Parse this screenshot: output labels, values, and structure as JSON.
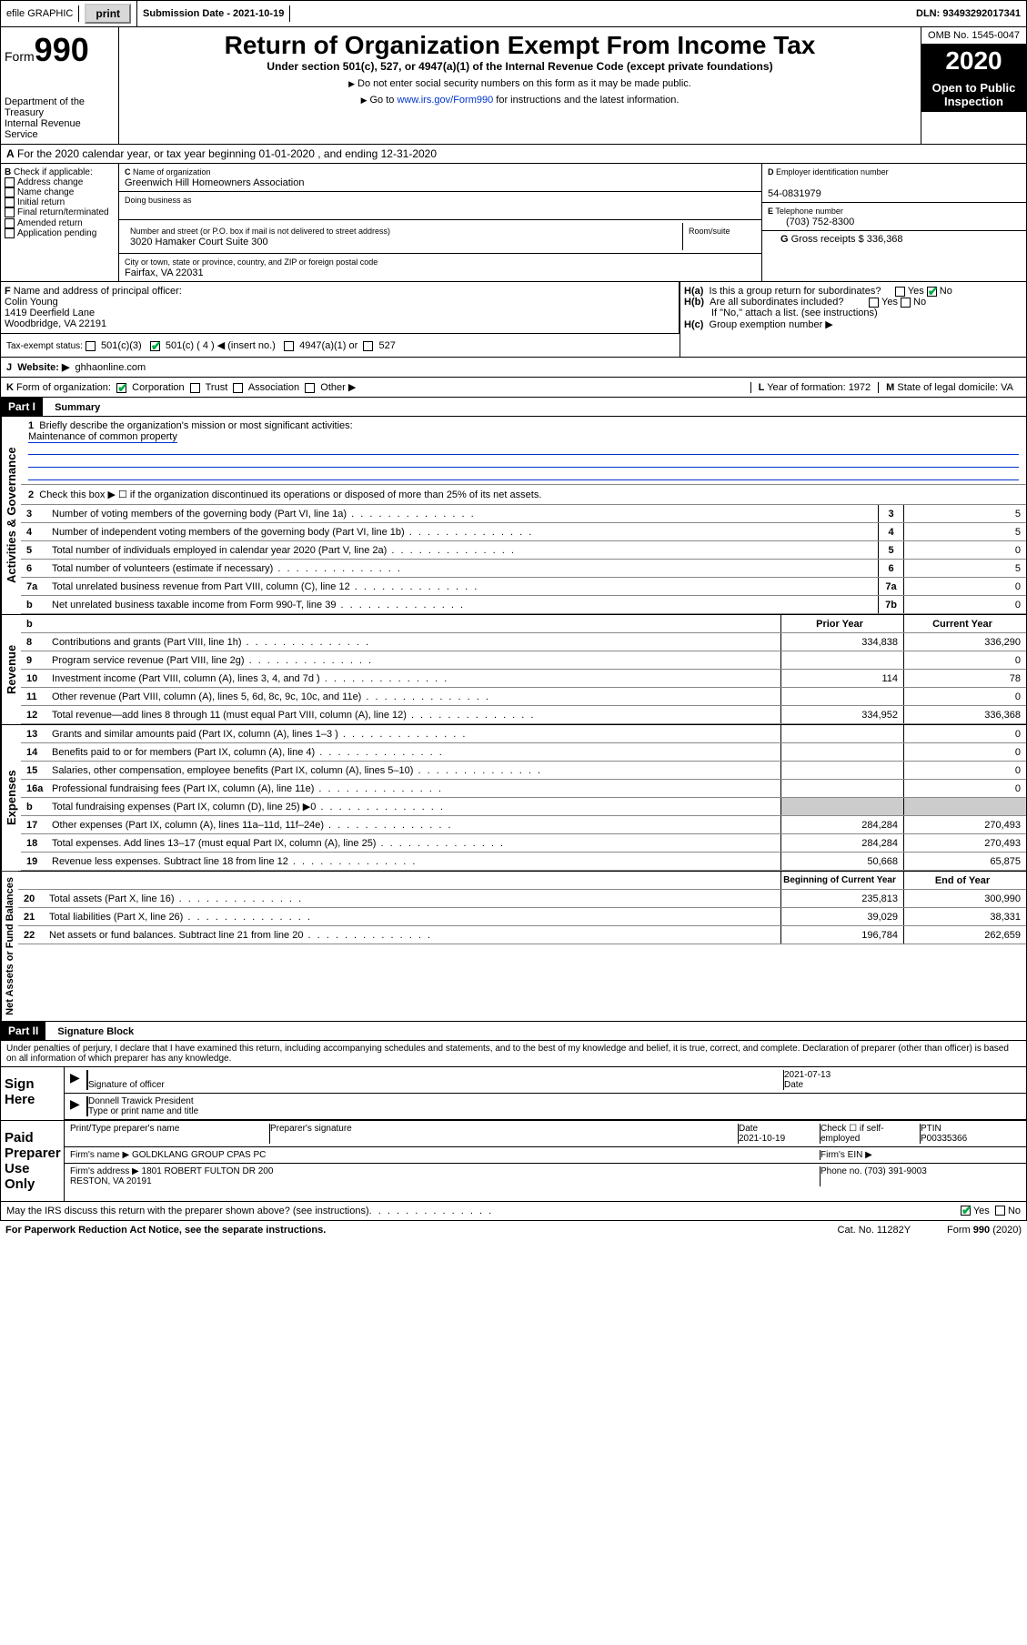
{
  "topbar": {
    "efile_label": "efile GRAPHIC",
    "print_btn": "print",
    "submission_label": "Submission Date - 2021-10-19",
    "dln_label": "DLN: 93493292017341"
  },
  "header": {
    "form_prefix": "Form",
    "form_num": "990",
    "dept": "Department of the Treasury\nInternal Revenue Service",
    "title": "Return of Organization Exempt From Income Tax",
    "sub1": "Under section 501(c), 527, or 4947(a)(1) of the Internal Revenue Code (except private foundations)",
    "sub2": "Do not enter social security numbers on this form as it may be made public.",
    "sub3_pre": "Go to ",
    "sub3_link": "www.irs.gov/Form990",
    "sub3_post": " for instructions and the latest information.",
    "omb": "OMB No. 1545-0047",
    "year": "2020",
    "inspect": "Open to Public Inspection"
  },
  "periodA": "For the 2020 calendar year, or tax year beginning 01-01-2020    , and ending 12-31-2020",
  "checkB": {
    "label": "Check if applicable:",
    "items": [
      "Address change",
      "Name change",
      "Initial return",
      "Final return/terminated",
      "Amended return",
      "Application pending"
    ]
  },
  "C": {
    "name_lbl": "Name of organization",
    "name": "Greenwich Hill Homeowners Association",
    "dba_lbl": "Doing business as",
    "addr_lbl": "Number and street (or P.O. box if mail is not delivered to street address)",
    "room_lbl": "Room/suite",
    "addr": "3020 Hamaker Court Suite 300",
    "city_lbl": "City or town, state or province, country, and ZIP or foreign postal code",
    "city": "Fairfax, VA  22031"
  },
  "D": {
    "lbl": "Employer identification number",
    "val": "54-0831979"
  },
  "E": {
    "lbl": "Telephone number",
    "val": "(703) 752-8300"
  },
  "G": {
    "lbl": "Gross receipts $",
    "val": "336,368"
  },
  "F": {
    "lbl": "Name and address of principal officer:",
    "name": "Colin Young",
    "addr1": "1419 Deerfield Lane",
    "addr2": "Woodbridge, VA  22191"
  },
  "H": {
    "a": "Is this a group return for subordinates?",
    "b": "Are all subordinates included?",
    "bnote": "If \"No,\" attach a list. (see instructions)",
    "c": "Group exemption number ▶",
    "yes": "Yes",
    "no": "No"
  },
  "taxexempt": {
    "lbl": "Tax-exempt status:",
    "opts": [
      "501(c)(3)",
      "501(c) ( 4 ) ◀ (insert no.)",
      "4947(a)(1) or",
      "527"
    ]
  },
  "J": {
    "lbl": "Website: ▶",
    "val": "ghhaonline.com"
  },
  "K": {
    "lbl": "Form of organization:",
    "opts": [
      "Corporation",
      "Trust",
      "Association",
      "Other ▶"
    ]
  },
  "L": {
    "lbl": "Year of formation:",
    "val": "1972"
  },
  "M": {
    "lbl": "State of legal domicile:",
    "val": "VA"
  },
  "part1": {
    "hdr": "Part I",
    "title": "Summary",
    "vtab1": "Activities & Governance",
    "vtab2": "Revenue",
    "vtab3": "Expenses",
    "vtab4": "Net Assets or Fund Balances",
    "q1": "Briefly describe the organization's mission or most significant activities:",
    "q1a": "Maintenance of common property",
    "q2": "Check this box ▶ ☐  if the organization discontinued its operations or disposed of more than 25% of its net assets.",
    "lines_gov": [
      {
        "n": "3",
        "t": "Number of voting members of the governing body (Part VI, line 1a)",
        "cn": "3",
        "v": "5"
      },
      {
        "n": "4",
        "t": "Number of independent voting members of the governing body (Part VI, line 1b)",
        "cn": "4",
        "v": "5"
      },
      {
        "n": "5",
        "t": "Total number of individuals employed in calendar year 2020 (Part V, line 2a)",
        "cn": "5",
        "v": "0"
      },
      {
        "n": "6",
        "t": "Total number of volunteers (estimate if necessary)",
        "cn": "6",
        "v": "5"
      },
      {
        "n": "7a",
        "t": "Total unrelated business revenue from Part VIII, column (C), line 12",
        "cn": "7a",
        "v": "0"
      },
      {
        "n": "b",
        "t": "Net unrelated business taxable income from Form 990-T, line 39",
        "cn": "7b",
        "v": "0"
      }
    ],
    "col_py": "Prior Year",
    "col_cy": "Current Year",
    "lines_rev": [
      {
        "n": "8",
        "t": "Contributions and grants (Part VIII, line 1h)",
        "py": "334,838",
        "cy": "336,290"
      },
      {
        "n": "9",
        "t": "Program service revenue (Part VIII, line 2g)",
        "py": "",
        "cy": "0"
      },
      {
        "n": "10",
        "t": "Investment income (Part VIII, column (A), lines 3, 4, and 7d )",
        "py": "114",
        "cy": "78"
      },
      {
        "n": "11",
        "t": "Other revenue (Part VIII, column (A), lines 5, 6d, 8c, 9c, 10c, and 11e)",
        "py": "",
        "cy": "0"
      },
      {
        "n": "12",
        "t": "Total revenue—add lines 8 through 11 (must equal Part VIII, column (A), line 12)",
        "py": "334,952",
        "cy": "336,368"
      }
    ],
    "lines_exp": [
      {
        "n": "13",
        "t": "Grants and similar amounts paid (Part IX, column (A), lines 1–3 )",
        "py": "",
        "cy": "0"
      },
      {
        "n": "14",
        "t": "Benefits paid to or for members (Part IX, column (A), line 4)",
        "py": "",
        "cy": "0"
      },
      {
        "n": "15",
        "t": "Salaries, other compensation, employee benefits (Part IX, column (A), lines 5–10)",
        "py": "",
        "cy": "0"
      },
      {
        "n": "16a",
        "t": "Professional fundraising fees (Part IX, column (A), line 11e)",
        "py": "",
        "cy": "0"
      },
      {
        "n": "b",
        "t": "Total fundraising expenses (Part IX, column (D), line 25) ▶0",
        "py": "GRAY",
        "cy": "GRAY"
      },
      {
        "n": "17",
        "t": "Other expenses (Part IX, column (A), lines 11a–11d, 11f–24e)",
        "py": "284,284",
        "cy": "270,493"
      },
      {
        "n": "18",
        "t": "Total expenses. Add lines 13–17 (must equal Part IX, column (A), line 25)",
        "py": "284,284",
        "cy": "270,493"
      },
      {
        "n": "19",
        "t": "Revenue less expenses. Subtract line 18 from line 12",
        "py": "50,668",
        "cy": "65,875"
      }
    ],
    "col_bcy": "Beginning of Current Year",
    "col_eoy": "End of Year",
    "lines_na": [
      {
        "n": "20",
        "t": "Total assets (Part X, line 16)",
        "py": "235,813",
        "cy": "300,990"
      },
      {
        "n": "21",
        "t": "Total liabilities (Part X, line 26)",
        "py": "39,029",
        "cy": "38,331"
      },
      {
        "n": "22",
        "t": "Net assets or fund balances. Subtract line 21 from line 20",
        "py": "196,784",
        "cy": "262,659"
      }
    ]
  },
  "part2": {
    "hdr": "Part II",
    "title": "Signature Block",
    "decl": "Under penalties of perjury, I declare that I have examined this return, including accompanying schedules and statements, and to the best of my knowledge and belief, it is true, correct, and complete. Declaration of preparer (other than officer) is based on all information of which preparer has any knowledge.",
    "sign_here": "Sign Here",
    "sig_officer": "Signature of officer",
    "date_lbl": "Date",
    "sig_date": "2021-07-13",
    "officer_name": "Donnell Trawick President",
    "type_name": "Type or print name and title",
    "paid": "Paid Preparer Use Only",
    "prep_name_lbl": "Print/Type preparer's name",
    "prep_sig_lbl": "Preparer's signature",
    "prep_date_lbl": "Date",
    "prep_date": "2021-10-19",
    "check_if": "Check ☐ if self-employed",
    "ptin_lbl": "PTIN",
    "ptin": "P00335366",
    "firm_name_lbl": "Firm's name    ▶",
    "firm_name": "GOLDKLANG GROUP CPAS PC",
    "firm_ein_lbl": "Firm's EIN ▶",
    "firm_addr_lbl": "Firm's address ▶",
    "firm_addr": "1801 ROBERT FULTON DR 200\nRESTON, VA  20191",
    "phone_lbl": "Phone no.",
    "phone": "(703) 391-9003",
    "discuss": "May the IRS discuss this return with the preparer shown above? (see instructions)",
    "yes": "Yes",
    "no": "No"
  },
  "footer": {
    "pra": "For Paperwork Reduction Act Notice, see the separate instructions.",
    "cat": "Cat. No. 11282Y",
    "form": "Form 990 (2020)"
  }
}
